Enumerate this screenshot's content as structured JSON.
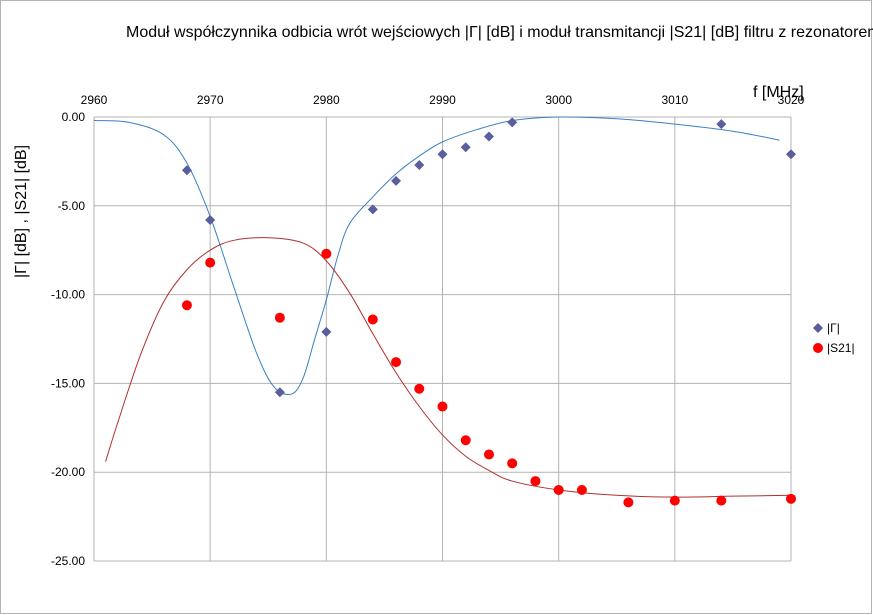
{
  "chart_data": {
    "type": "scatter",
    "title": "Moduł współczynnika odbicia wrót wejściowych |Γ| [dB] i moduł transmitancji  |S21| [dB] filtru z rezonatorem",
    "xlabel": "f [MHz]",
    "ylabel": "|Γ| [dB] , |S21| [dB]",
    "xlim": [
      2960,
      3020
    ],
    "ylim": [
      -25,
      0
    ],
    "x_ticks": [
      "2960",
      "2970",
      "2980",
      "2990",
      "3000",
      "3010",
      "3020"
    ],
    "y_ticks": [
      "0.00",
      "-5.00",
      "-10.00",
      "-15.00",
      "-20.00",
      "-25.00"
    ],
    "grid": true,
    "x_axis_position": "top",
    "legend_position": "right",
    "series": [
      {
        "name": "|Γ|",
        "marker": "diamond",
        "color": "#5a5e9c",
        "x": [
          2968,
          2970,
          2976,
          2980,
          2984,
          2986,
          2988,
          2990,
          2992,
          2994,
          2996,
          3014,
          3020
        ],
        "y": [
          -3.0,
          -5.8,
          -15.5,
          -12.1,
          -5.2,
          -3.6,
          -2.7,
          -2.1,
          -1.7,
          -1.1,
          -0.3,
          -0.4,
          -2.1
        ],
        "trend_color": "#3b7fc4",
        "trend": [
          [
            2960,
            -0.2
          ],
          [
            2963,
            -0.3
          ],
          [
            2966,
            -1.0
          ],
          [
            2968,
            -2.6
          ],
          [
            2970,
            -5.6
          ],
          [
            2972,
            -9.5
          ],
          [
            2974,
            -13.3
          ],
          [
            2975.5,
            -15.2
          ],
          [
            2977,
            -15.6
          ],
          [
            2978,
            -14.7
          ],
          [
            2979,
            -12.5
          ],
          [
            2980,
            -10.3
          ],
          [
            2981,
            -7.8
          ],
          [
            2982,
            -6.0
          ],
          [
            2984,
            -4.5
          ],
          [
            2986,
            -3.2
          ],
          [
            2988,
            -2.2
          ],
          [
            2990,
            -1.4
          ],
          [
            2993,
            -0.7
          ],
          [
            2996,
            -0.2
          ],
          [
            3000,
            0.0
          ],
          [
            3005,
            -0.1
          ],
          [
            3010,
            -0.4
          ],
          [
            3015,
            -0.8
          ],
          [
            3019,
            -1.3
          ]
        ]
      },
      {
        "name": "|S21|",
        "marker": "circle",
        "color": "#ff0000",
        "x": [
          2968,
          2970,
          2976,
          2980,
          2984,
          2986,
          2988,
          2990,
          2992,
          2994,
          2996,
          2998,
          3000,
          3002,
          3006,
          3010,
          3014,
          3020
        ],
        "y": [
          -10.6,
          -8.2,
          -11.3,
          -7.7,
          -11.4,
          -13.8,
          -15.3,
          -16.3,
          -18.2,
          -19.0,
          -19.5,
          -20.5,
          -21.0,
          -21.0,
          -21.7,
          -21.6,
          -21.6,
          -21.5
        ],
        "trend_color": "#b03030",
        "trend": [
          [
            2961,
            -19.4
          ],
          [
            2962,
            -17.3
          ],
          [
            2964,
            -13.4
          ],
          [
            2966,
            -10.4
          ],
          [
            2968,
            -8.6
          ],
          [
            2970,
            -7.5
          ],
          [
            2972,
            -6.95
          ],
          [
            2975,
            -6.8
          ],
          [
            2978,
            -7.1
          ],
          [
            2980,
            -8.1
          ],
          [
            2982,
            -9.9
          ],
          [
            2984,
            -12.2
          ],
          [
            2986,
            -14.4
          ],
          [
            2988,
            -16.3
          ],
          [
            2990,
            -17.9
          ],
          [
            2992,
            -19.1
          ],
          [
            2994,
            -19.9
          ],
          [
            2996,
            -20.5
          ],
          [
            3000,
            -21.0
          ],
          [
            3005,
            -21.3
          ],
          [
            3010,
            -21.4
          ],
          [
            3015,
            -21.35
          ],
          [
            3020,
            -21.3
          ]
        ]
      }
    ]
  }
}
